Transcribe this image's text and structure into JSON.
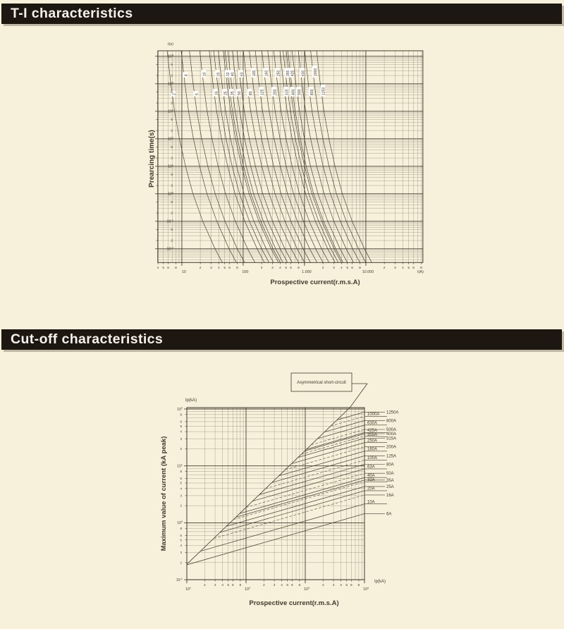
{
  "page": {
    "background": "#f7f0da",
    "header_bg": "#1d1712",
    "header_text_color": "#f6f2e9",
    "ink": "#413b30",
    "grid_minor": "#8b8371",
    "mid": "#6e6552",
    "label_box": "#ffffff"
  },
  "sections": [
    {
      "title": "T-I characteristics"
    },
    {
      "title": "Cut-off characteristics"
    }
  ],
  "chart_data": [
    {
      "type": "line",
      "title": "T-I characteristics",
      "xlabel": "Prospective current(r.m.s.A)",
      "ylabel": "Prearcing time(s)",
      "x_unit": "I(A)",
      "y_unit": "t(s)",
      "x_scale": "log",
      "y_scale": "log",
      "x_range_A": [
        4,
        85000
      ],
      "y_range_s": [
        0.003,
        160000
      ],
      "x_decade_labels": [
        "10",
        "100",
        "1.000",
        "10.000"
      ],
      "x_minor_labels": [
        "2",
        "3",
        "4",
        "5",
        "6",
        "8"
      ],
      "x_leading_minor_labels": [
        "4",
        "5",
        "6",
        "8"
      ],
      "y_decade_exponents": [
        5,
        4,
        3,
        2,
        1,
        0,
        -1,
        -2
      ],
      "y_minor_labels": [
        "5",
        "2"
      ],
      "grid": true,
      "ratings_A": [
        2,
        4,
        6,
        10,
        16,
        20,
        25,
        32,
        35,
        40,
        50,
        63,
        80,
        100,
        125,
        160,
        200,
        250,
        315,
        355,
        400,
        425,
        500,
        630,
        800,
        1000,
        1250
      ],
      "curve_profile": {
        "log_t": [
          5.2,
          4.0,
          3.0,
          2.0,
          1.0,
          0.0,
          -1.0,
          -2.0,
          -2.5
        ],
        "log_multiple_of_In": [
          0.1,
          0.16,
          0.22,
          0.3,
          0.4,
          0.52,
          0.68,
          0.88,
          1.0
        ]
      }
    },
    {
      "type": "line",
      "title": "Cut-off characteristics",
      "xlabel": "Prospective current(r.m.s.A)",
      "ylabel": "Maximum value of current (kA peak)",
      "x_unit": "Ip(kA)",
      "y_unit": "Ip(kA)",
      "x_scale": "log",
      "y_scale": "log",
      "x_decade_exponents": [
        1,
        2,
        3,
        4
      ],
      "x_minor_labels": [
        "2",
        "3",
        "4",
        "5",
        "6",
        "8"
      ],
      "y_decade_exponents": [
        2,
        1,
        0,
        -1
      ],
      "y_minor_labels": [
        "8",
        "6",
        "5",
        "4",
        "3",
        "2"
      ],
      "grid": true,
      "annotation": "Asymmetrical short-circuit",
      "rating_labels": [
        "1250A",
        "1000A",
        "800A",
        "630A",
        "500A",
        "425A",
        "400A",
        "355A",
        "315A",
        "250A",
        "200A",
        "160A",
        "125A",
        "100A",
        "80A",
        "63A",
        "50A",
        "40A",
        "35A",
        "32A",
        "25A",
        "20A",
        "16A",
        "10A",
        "6A"
      ],
      "fan_model": {
        "diagonal_kA_per_A": 0.0187,
        "end_kA_coef": 0.365,
        "end_kA_exp": 0.77,
        "cutoff_slope": 0.3
      }
    }
  ]
}
